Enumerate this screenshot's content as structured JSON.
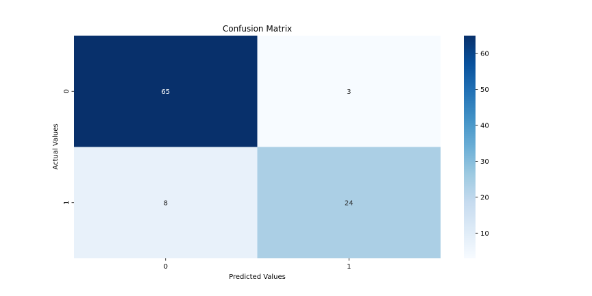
{
  "chart_data": {
    "type": "heatmap",
    "title": "Confusion Matrix",
    "xlabel": "Predicted Values",
    "ylabel": "Actual Values",
    "x_categories": [
      "0",
      "1"
    ],
    "y_categories": [
      "0",
      "1"
    ],
    "values": [
      [
        65,
        3
      ],
      [
        8,
        24
      ]
    ],
    "colormap": "Blues",
    "colorbar": {
      "min": 3,
      "max": 65,
      "ticks": [
        10,
        20,
        30,
        40,
        50,
        60
      ],
      "tick_labels": [
        "10",
        "20",
        "30",
        "40",
        "50",
        "60"
      ]
    },
    "cell_colors": [
      [
        "#08306b",
        "#f7fbff"
      ],
      [
        "#e8f1fa",
        "#abcfe5"
      ]
    ],
    "annotation_colors": [
      [
        "#ffffff",
        "#262626"
      ],
      [
        "#262626",
        "#262626"
      ]
    ],
    "colorbar_stops": [
      "#f7fbff",
      "#deebf7",
      "#c6dbef",
      "#9ecae1",
      "#6baed6",
      "#4292c6",
      "#2171b5",
      "#08519c",
      "#08306b"
    ]
  }
}
